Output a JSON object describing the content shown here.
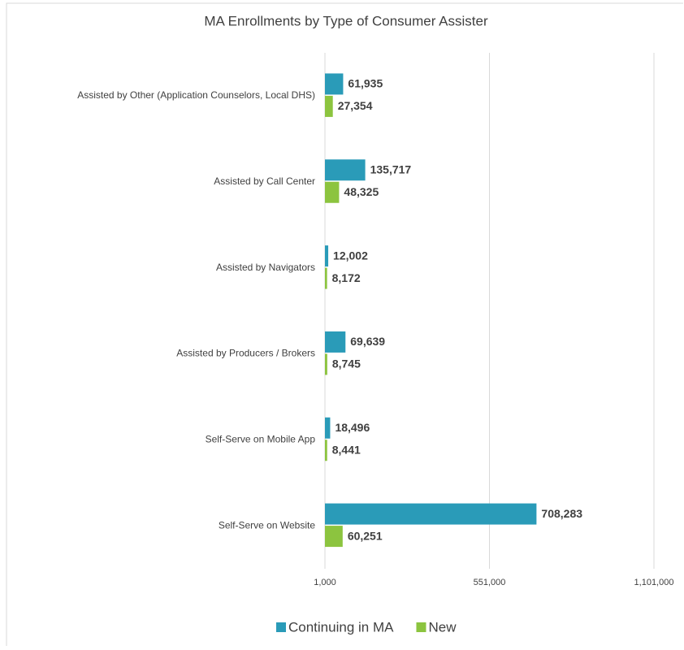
{
  "chart_data": {
    "type": "barh",
    "title": "MA Enrollments by Type of Consumer Assister",
    "categories": [
      "Assisted by Other (Application Counselors, Local DHS)",
      "Assisted by Call Center",
      "Assisted by Navigators",
      "Assisted by Producers / Brokers",
      "Self-Serve on Mobile App",
      "Self-Serve on Website"
    ],
    "series": [
      {
        "name": "Continuing in MA",
        "color": "#2a9bb8",
        "values": [
          61935,
          135717,
          12002,
          69639,
          18496,
          708283
        ],
        "value_labels": [
          "61,935",
          "135,717",
          "12,002",
          "69,639",
          "18,496",
          "708,283"
        ]
      },
      {
        "name": "New",
        "color": "#8cc43f",
        "values": [
          27354,
          48325,
          8172,
          8745,
          8441,
          60251
        ],
        "value_labels": [
          "27,354",
          "48,325",
          "8,172",
          "8,745",
          "8,441",
          "60,251"
        ]
      }
    ],
    "xlim": [
      1000,
      1101000
    ],
    "xticks": [
      {
        "value": 1000,
        "label": "1,000"
      },
      {
        "value": 551000,
        "label": "551,000"
      },
      {
        "value": 1101000,
        "label": "1,101,000"
      }
    ],
    "grid": true,
    "legend": "bottom"
  }
}
